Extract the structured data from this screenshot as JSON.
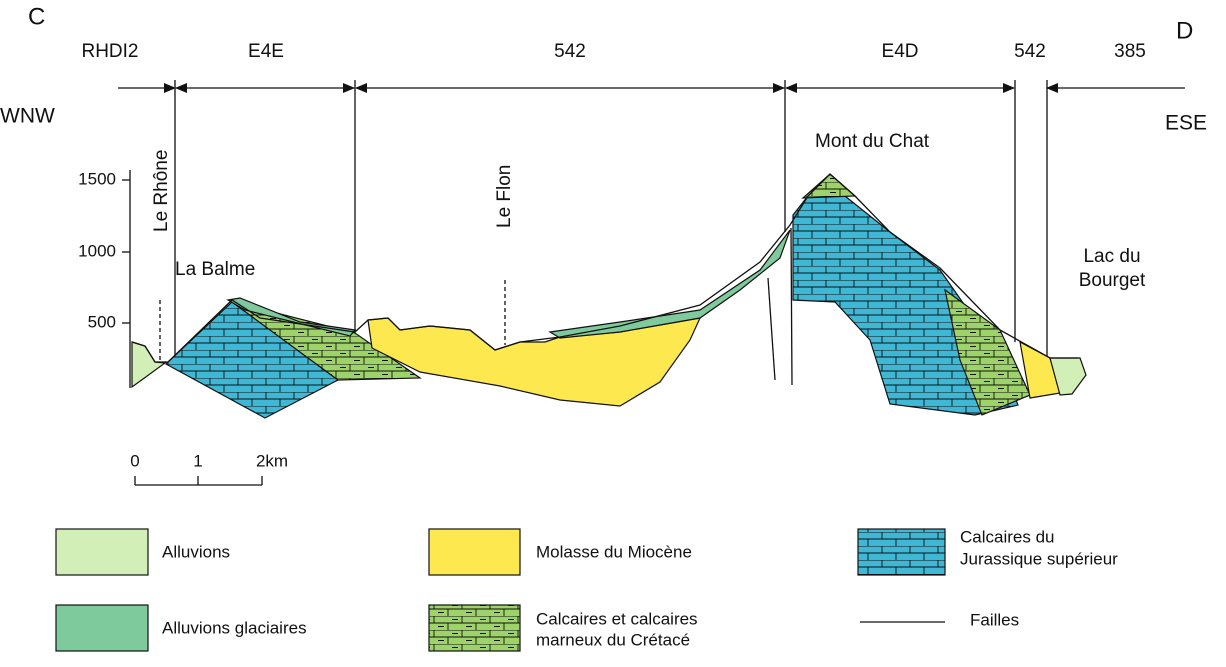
{
  "header": {
    "left_letter": "C",
    "right_letter": "D",
    "left_direction": "WNW",
    "right_direction": "ESE"
  },
  "zones": [
    "RHDI2",
    "E4E",
    "542",
    "E4D",
    "542",
    "385"
  ],
  "axis_ticks": [
    "1500",
    "1000",
    "500"
  ],
  "places": {
    "rhone": "Le Rhône",
    "balme": "La Balme",
    "flon": "Le Flon",
    "mont": "Mont du Chat",
    "lac": [
      "Lac du",
      "Bourget"
    ]
  },
  "scale": [
    "0",
    "1",
    "2km"
  ],
  "legend": {
    "alluvions": "Alluvions",
    "glaciaires": "Alluvions glaciaires",
    "molasse": "Molasse du Miocène",
    "cretace": [
      "Calcaires et calcaires",
      "marneux du Crétacé"
    ],
    "jurassique": [
      "Calcaires du",
      "Jurassique supérieur"
    ],
    "failles": "Failles"
  }
}
